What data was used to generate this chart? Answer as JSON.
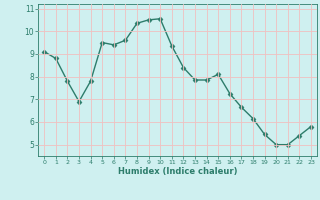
{
  "x": [
    0,
    1,
    2,
    3,
    4,
    5,
    6,
    7,
    8,
    9,
    10,
    11,
    12,
    13,
    14,
    15,
    16,
    17,
    18,
    19,
    20,
    21,
    22,
    23
  ],
  "y": [
    9.1,
    8.8,
    7.8,
    6.9,
    7.8,
    9.5,
    9.4,
    9.6,
    10.35,
    10.5,
    10.55,
    9.35,
    8.4,
    7.85,
    7.85,
    8.1,
    7.25,
    6.65,
    6.15,
    5.45,
    5.0,
    5.0,
    5.4,
    5.8
  ],
  "xlabel": "Humidex (Indice chaleur)",
  "ylim": [
    4.5,
    11.2
  ],
  "xlim": [
    -0.5,
    23.5
  ],
  "yticks": [
    5,
    6,
    7,
    8,
    9,
    10,
    11
  ],
  "xticks": [
    0,
    1,
    2,
    3,
    4,
    5,
    6,
    7,
    8,
    9,
    10,
    11,
    12,
    13,
    14,
    15,
    16,
    17,
    18,
    19,
    20,
    21,
    22,
    23
  ],
  "bg_color": "#cff0f0",
  "plot_color": "#2d7d6b",
  "grid_color": "#f0c0c0",
  "line_width": 1.0,
  "marker_size": 2.5
}
